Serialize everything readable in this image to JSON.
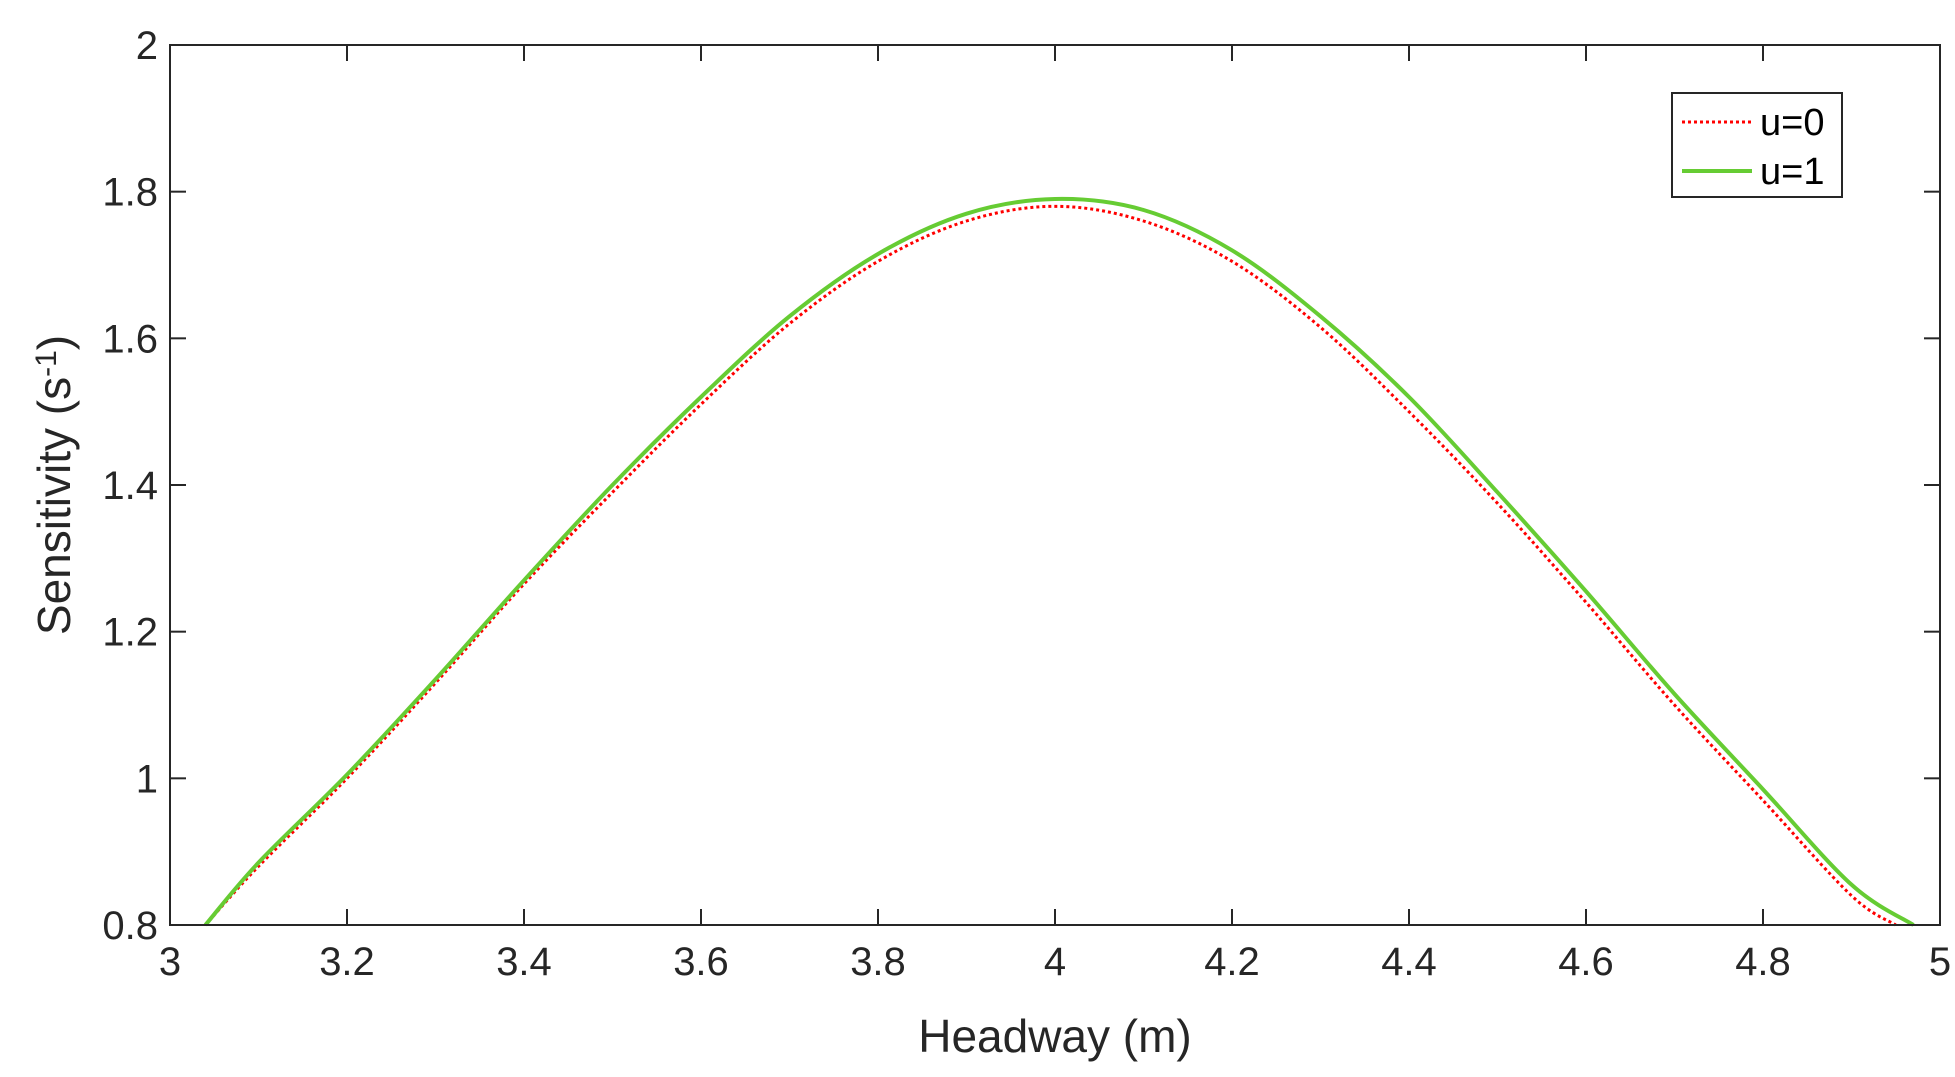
{
  "chart_data": {
    "type": "line",
    "title": "",
    "xlabel": "Headway (m)",
    "ylabel": "Sensitivity (s",
    "ylabel_sup": "-1",
    "ylabel_close": ")",
    "xlim": [
      3,
      5
    ],
    "ylim": [
      0.8,
      2
    ],
    "xticks": [
      3,
      3.2,
      3.4,
      3.6,
      3.8,
      4,
      4.2,
      4.4,
      4.6,
      4.8,
      5
    ],
    "xtick_labels": [
      "3",
      "3.2",
      "3.4",
      "3.6",
      "3.8",
      "4",
      "4.2",
      "4.4",
      "4.6",
      "4.8",
      "5"
    ],
    "yticks": [
      0.8,
      1,
      1.2,
      1.4,
      1.6,
      1.8,
      2
    ],
    "ytick_labels": [
      "0.8",
      "1",
      "1.2",
      "1.4",
      "1.6",
      "1.8",
      "2"
    ],
    "grid": false,
    "legend_position": "top-right",
    "series": [
      {
        "name": "u=0",
        "color": "#ff0000",
        "style": "dotted",
        "x": [
          3.04,
          3.1,
          3.2,
          3.3,
          3.4,
          3.5,
          3.6,
          3.7,
          3.8,
          3.9,
          4.0,
          4.1,
          4.2,
          4.3,
          4.4,
          4.5,
          4.6,
          4.7,
          4.8,
          4.9,
          4.95
        ],
        "y": [
          0.8,
          0.88,
          1.0,
          1.13,
          1.265,
          1.39,
          1.51,
          1.62,
          1.705,
          1.76,
          1.78,
          1.76,
          1.705,
          1.615,
          1.5,
          1.375,
          1.24,
          1.1,
          0.97,
          0.84,
          0.8
        ]
      },
      {
        "name": "u=1",
        "color": "#66cc33",
        "style": "solid",
        "x": [
          3.04,
          3.1,
          3.2,
          3.3,
          3.4,
          3.5,
          3.6,
          3.7,
          3.8,
          3.9,
          4.0,
          4.1,
          4.2,
          4.3,
          4.4,
          4.5,
          4.6,
          4.7,
          4.8,
          4.9,
          4.97
        ],
        "y": [
          0.8,
          0.885,
          1.005,
          1.135,
          1.27,
          1.4,
          1.52,
          1.63,
          1.715,
          1.77,
          1.79,
          1.775,
          1.72,
          1.63,
          1.52,
          1.39,
          1.255,
          1.115,
          0.985,
          0.855,
          0.8
        ]
      }
    ]
  }
}
